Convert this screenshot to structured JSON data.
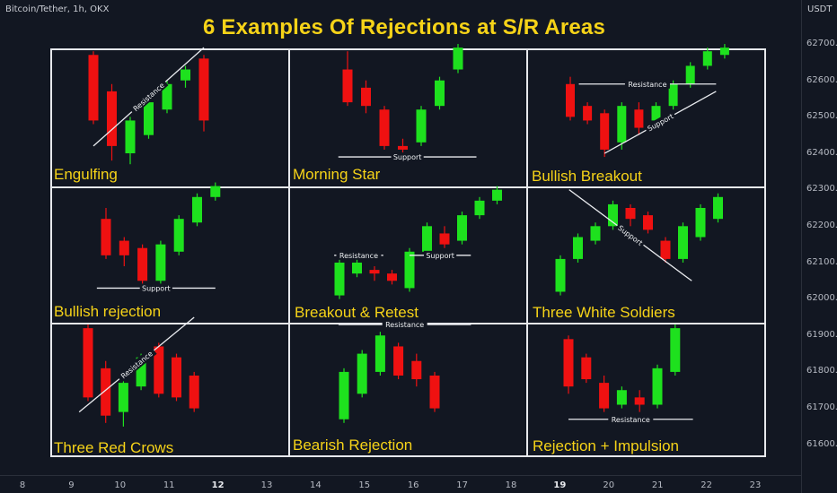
{
  "header": {
    "symbol_text": "Bitcoin/Tether, 1h, OKX",
    "title": "6 Examples Of Rejections at S/R Areas",
    "currency": "USDT"
  },
  "colors": {
    "bull": "#1ee11e",
    "bear": "#ef1111",
    "title": "#f6d318",
    "grid": "#e6e8ec",
    "background": "#121722"
  },
  "axes": {
    "y_ticks": [
      "62700.0",
      "62600.0",
      "62500.0",
      "62400.0",
      "62300.0",
      "62200.0",
      "62100.0",
      "62000.0",
      "61900.0",
      "61800.0",
      "61700.0",
      "61600.0"
    ],
    "x_ticks": [
      {
        "text": "8",
        "bold": false
      },
      {
        "text": "9",
        "bold": false
      },
      {
        "text": "10",
        "bold": false
      },
      {
        "text": "11",
        "bold": false
      },
      {
        "text": "12",
        "bold": true
      },
      {
        "text": "13",
        "bold": false
      },
      {
        "text": "14",
        "bold": false
      },
      {
        "text": "15",
        "bold": false
      },
      {
        "text": "16",
        "bold": false
      },
      {
        "text": "17",
        "bold": false
      },
      {
        "text": "18",
        "bold": false
      },
      {
        "text": "19",
        "bold": true
      },
      {
        "text": "20",
        "bold": false
      },
      {
        "text": "21",
        "bold": false
      },
      {
        "text": "22",
        "bold": false
      },
      {
        "text": "23",
        "bold": false
      }
    ]
  },
  "cells": [
    {
      "label": "Engulfing"
    },
    {
      "label": "Morning Star"
    },
    {
      "label": "Bullish Breakout"
    },
    {
      "label": "Bullish rejection"
    },
    {
      "label": "Breakout & Retest"
    },
    {
      "label": "Three White Soldiers"
    },
    {
      "label": "Three Red Crows"
    },
    {
      "label": "Bearish Rejection"
    },
    {
      "label": "Rejection + Impulsion"
    }
  ],
  "line_labels": {
    "resistance": "Resistance",
    "support": "Support"
  },
  "chart_data": {
    "type": "candlestick",
    "title": "6 Examples Of Rejections at S/R Areas",
    "y_unit": "USDT",
    "ylim": [
      61550,
      62760
    ],
    "panels": [
      {
        "name": "Engulfing",
        "candles": [
          {
            "o": 62660,
            "h": 62670,
            "l": 62470,
            "c": 62480
          },
          {
            "o": 62560,
            "h": 62580,
            "l": 62370,
            "c": 62410
          },
          {
            "o": 62390,
            "h": 62490,
            "l": 62360,
            "c": 62480
          },
          {
            "o": 62440,
            "h": 62540,
            "l": 62430,
            "c": 62530
          },
          {
            "o": 62510,
            "h": 62590,
            "l": 62500,
            "c": 62580
          },
          {
            "o": 62590,
            "h": 62630,
            "l": 62570,
            "c": 62620
          },
          {
            "o": 62650,
            "h": 62660,
            "l": 62450,
            "c": 62480
          }
        ],
        "lines": [
          {
            "kind": "Resistance",
            "from": [
              0,
              62410
            ],
            "to": [
              6,
              62680
            ]
          }
        ]
      },
      {
        "name": "Morning Star",
        "candles": [
          {
            "o": 62620,
            "h": 62670,
            "l": 62520,
            "c": 62530
          },
          {
            "o": 62570,
            "h": 62590,
            "l": 62500,
            "c": 62520
          },
          {
            "o": 62510,
            "h": 62520,
            "l": 62400,
            "c": 62410
          },
          {
            "o": 62410,
            "h": 62430,
            "l": 62390,
            "c": 62400
          },
          {
            "o": 62420,
            "h": 62520,
            "l": 62410,
            "c": 62510
          },
          {
            "o": 62520,
            "h": 62600,
            "l": 62510,
            "c": 62590
          },
          {
            "o": 62620,
            "h": 62690,
            "l": 62610,
            "c": 62680
          }
        ],
        "lines": [
          {
            "kind": "Support",
            "from": [
              -0.5,
              62380
            ],
            "to": [
              7,
              62380
            ]
          }
        ]
      },
      {
        "name": "Bullish Breakout",
        "candles": [
          {
            "o": 62580,
            "h": 62600,
            "l": 62480,
            "c": 62490
          },
          {
            "o": 62520,
            "h": 62530,
            "l": 62470,
            "c": 62480
          },
          {
            "o": 62500,
            "h": 62510,
            "l": 62380,
            "c": 62400
          },
          {
            "o": 62420,
            "h": 62530,
            "l": 62400,
            "c": 62520
          },
          {
            "o": 62510,
            "h": 62530,
            "l": 62440,
            "c": 62460
          },
          {
            "o": 62480,
            "h": 62530,
            "l": 62470,
            "c": 62520
          },
          {
            "o": 62520,
            "h": 62590,
            "l": 62510,
            "c": 62580
          },
          {
            "o": 62580,
            "h": 62640,
            "l": 62570,
            "c": 62630
          },
          {
            "o": 62630,
            "h": 62680,
            "l": 62620,
            "c": 62670
          },
          {
            "o": 62660,
            "h": 62690,
            "l": 62650,
            "c": 62680
          }
        ],
        "lines": [
          {
            "kind": "Resistance",
            "from": [
              0.5,
              62580
            ],
            "to": [
              8.5,
              62580
            ]
          },
          {
            "kind": "Support",
            "from": [
              2,
              62390
            ],
            "to": [
              8.5,
              62560
            ]
          }
        ]
      },
      {
        "name": "Bullish rejection",
        "candles": [
          {
            "o": 62210,
            "h": 62240,
            "l": 62100,
            "c": 62110
          },
          {
            "o": 62150,
            "h": 62160,
            "l": 62080,
            "c": 62110
          },
          {
            "o": 62130,
            "h": 62140,
            "l": 62030,
            "c": 62040
          },
          {
            "o": 62040,
            "h": 62150,
            "l": 62030,
            "c": 62140
          },
          {
            "o": 62120,
            "h": 62220,
            "l": 62110,
            "c": 62210
          },
          {
            "o": 62200,
            "h": 62280,
            "l": 62190,
            "c": 62270
          },
          {
            "o": 62270,
            "h": 62310,
            "l": 62260,
            "c": 62300
          }
        ],
        "lines": [
          {
            "kind": "Support",
            "from": [
              -0.5,
              62020
            ],
            "to": [
              6,
              62020
            ]
          }
        ]
      },
      {
        "name": "Breakout & Retest",
        "candles": [
          {
            "o": 62000,
            "h": 62100,
            "l": 61990,
            "c": 62090
          },
          {
            "o": 62060,
            "h": 62100,
            "l": 62050,
            "c": 62090
          },
          {
            "o": 62070,
            "h": 62080,
            "l": 62040,
            "c": 62060
          },
          {
            "o": 62060,
            "h": 62070,
            "l": 62030,
            "c": 62040
          },
          {
            "o": 62020,
            "h": 62130,
            "l": 62010,
            "c": 62120
          },
          {
            "o": 62120,
            "h": 62200,
            "l": 62110,
            "c": 62190
          },
          {
            "o": 62170,
            "h": 62190,
            "l": 62130,
            "c": 62140
          },
          {
            "o": 62150,
            "h": 62230,
            "l": 62140,
            "c": 62220
          },
          {
            "o": 62220,
            "h": 62270,
            "l": 62210,
            "c": 62260
          },
          {
            "o": 62260,
            "h": 62300,
            "l": 62250,
            "c": 62290
          }
        ],
        "lines": [
          {
            "kind": "Resistance",
            "from": [
              -0.3,
              62110
            ],
            "to": [
              2.5,
              62110
            ]
          },
          {
            "kind": "Support",
            "from": [
              4,
              62110
            ],
            "to": [
              7.5,
              62110
            ]
          }
        ]
      },
      {
        "name": "Three White Soldiers",
        "candles": [
          {
            "o": 62010,
            "h": 62110,
            "l": 62000,
            "c": 62100
          },
          {
            "o": 62100,
            "h": 62170,
            "l": 62090,
            "c": 62160
          },
          {
            "o": 62150,
            "h": 62200,
            "l": 62140,
            "c": 62190
          },
          {
            "o": 62190,
            "h": 62260,
            "l": 62180,
            "c": 62250
          },
          {
            "o": 62240,
            "h": 62250,
            "l": 62190,
            "c": 62210
          },
          {
            "o": 62220,
            "h": 62230,
            "l": 62170,
            "c": 62180
          },
          {
            "o": 62150,
            "h": 62160,
            "l": 62090,
            "c": 62100
          },
          {
            "o": 62100,
            "h": 62200,
            "l": 62090,
            "c": 62190
          },
          {
            "o": 62160,
            "h": 62250,
            "l": 62150,
            "c": 62240
          },
          {
            "o": 62210,
            "h": 62280,
            "l": 62200,
            "c": 62270
          }
        ],
        "lines": [
          {
            "kind": "Support",
            "from": [
              0.5,
              62290
            ],
            "to": [
              7.5,
              62040
            ]
          }
        ]
      },
      {
        "name": "Three Red Crows",
        "candles": [
          {
            "o": 61910,
            "h": 61920,
            "l": 61710,
            "c": 61720
          },
          {
            "o": 61800,
            "h": 61820,
            "l": 61650,
            "c": 61670
          },
          {
            "o": 61680,
            "h": 61770,
            "l": 61640,
            "c": 61760
          },
          {
            "o": 61750,
            "h": 61840,
            "l": 61740,
            "c": 61830
          },
          {
            "o": 61860,
            "h": 61870,
            "l": 61720,
            "c": 61730
          },
          {
            "o": 61830,
            "h": 61840,
            "l": 61710,
            "c": 61720
          },
          {
            "o": 61780,
            "h": 61790,
            "l": 61680,
            "c": 61690
          }
        ],
        "lines": [
          {
            "kind": "Resistance",
            "from": [
              -0.5,
              61680
            ],
            "to": [
              6,
              61940
            ]
          }
        ]
      },
      {
        "name": "Bearish Rejection",
        "candles": [
          {
            "o": 61660,
            "h": 61800,
            "l": 61650,
            "c": 61790
          },
          {
            "o": 61730,
            "h": 61850,
            "l": 61720,
            "c": 61840
          },
          {
            "o": 61790,
            "h": 61900,
            "l": 61780,
            "c": 61890
          },
          {
            "o": 61860,
            "h": 61870,
            "l": 61770,
            "c": 61780
          },
          {
            "o": 61820,
            "h": 61840,
            "l": 61750,
            "c": 61770
          },
          {
            "o": 61780,
            "h": 61790,
            "l": 61680,
            "c": 61690
          }
        ],
        "lines": [
          {
            "kind": "Resistance",
            "from": [
              -0.3,
              61920
            ],
            "to": [
              7,
              61920
            ]
          }
        ]
      },
      {
        "name": "Rejection + Impulsion",
        "candles": [
          {
            "o": 61880,
            "h": 61890,
            "l": 61730,
            "c": 61750
          },
          {
            "o": 61830,
            "h": 61840,
            "l": 61760,
            "c": 61770
          },
          {
            "o": 61760,
            "h": 61780,
            "l": 61680,
            "c": 61690
          },
          {
            "o": 61700,
            "h": 61750,
            "l": 61690,
            "c": 61740
          },
          {
            "o": 61720,
            "h": 61740,
            "l": 61680,
            "c": 61700
          },
          {
            "o": 61700,
            "h": 61810,
            "l": 61690,
            "c": 61800
          },
          {
            "o": 61790,
            "h": 61920,
            "l": 61780,
            "c": 61910
          }
        ],
        "lines": [
          {
            "kind": "Resistance",
            "from": [
              0,
              61660
            ],
            "to": [
              7,
              61660
            ]
          }
        ]
      }
    ]
  }
}
